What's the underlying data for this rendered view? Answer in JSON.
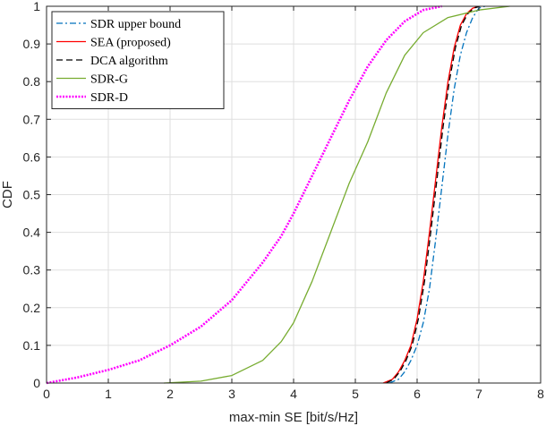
{
  "chart_data": {
    "type": "line",
    "title": "",
    "xlabel": "max-min SE [bit/s/Hz]",
    "ylabel": "CDF",
    "xlim": [
      0,
      8
    ],
    "ylim": [
      0,
      1
    ],
    "grid": true,
    "legend_position": "top-left",
    "xticks": [
      0,
      1,
      2,
      3,
      4,
      5,
      6,
      7,
      8
    ],
    "xtick_labels": [
      "0",
      "1",
      "2",
      "3",
      "4",
      "5",
      "6",
      "7",
      "8"
    ],
    "yticks": [
      0,
      0.1,
      0.2,
      0.3,
      0.4,
      0.5,
      0.6,
      0.7,
      0.8,
      0.9,
      1
    ],
    "ytick_labels": [
      "0",
      "0.1",
      "0.2",
      "0.3",
      "0.4",
      "0.5",
      "0.6",
      "0.7",
      "0.8",
      "0.9",
      "1"
    ],
    "series": [
      {
        "name": "SDR upper bound",
        "color": "#0072BD",
        "line_style": "dashdot",
        "points": [
          [
            5.55,
            0
          ],
          [
            5.7,
            0.01
          ],
          [
            5.8,
            0.03
          ],
          [
            5.9,
            0.06
          ],
          [
            6.0,
            0.1
          ],
          [
            6.1,
            0.16
          ],
          [
            6.2,
            0.25
          ],
          [
            6.3,
            0.38
          ],
          [
            6.4,
            0.52
          ],
          [
            6.5,
            0.66
          ],
          [
            6.6,
            0.78
          ],
          [
            6.7,
            0.87
          ],
          [
            6.8,
            0.93
          ],
          [
            6.9,
            0.97
          ],
          [
            7.0,
            0.995
          ],
          [
            7.1,
            1.0
          ]
        ]
      },
      {
        "name": "SEA (proposed)",
        "color": "#FF0000",
        "line_style": "solid",
        "points": [
          [
            5.45,
            0
          ],
          [
            5.6,
            0.01
          ],
          [
            5.7,
            0.03
          ],
          [
            5.8,
            0.06
          ],
          [
            5.9,
            0.1
          ],
          [
            6.0,
            0.17
          ],
          [
            6.1,
            0.27
          ],
          [
            6.2,
            0.4
          ],
          [
            6.3,
            0.54
          ],
          [
            6.4,
            0.68
          ],
          [
            6.5,
            0.8
          ],
          [
            6.6,
            0.89
          ],
          [
            6.7,
            0.95
          ],
          [
            6.8,
            0.98
          ],
          [
            6.9,
            0.995
          ],
          [
            7.0,
            1.0
          ]
        ]
      },
      {
        "name": "DCA algorithm",
        "color": "#000000",
        "line_style": "dashed",
        "points": [
          [
            5.5,
            0
          ],
          [
            5.62,
            0.01
          ],
          [
            5.72,
            0.03
          ],
          [
            5.82,
            0.06
          ],
          [
            5.92,
            0.1
          ],
          [
            6.02,
            0.17
          ],
          [
            6.12,
            0.27
          ],
          [
            6.22,
            0.4
          ],
          [
            6.32,
            0.54
          ],
          [
            6.42,
            0.68
          ],
          [
            6.52,
            0.8
          ],
          [
            6.62,
            0.89
          ],
          [
            6.72,
            0.95
          ],
          [
            6.82,
            0.98
          ],
          [
            6.92,
            0.995
          ],
          [
            7.02,
            1.0
          ]
        ]
      },
      {
        "name": "SDR-G",
        "color": "#77AC30",
        "line_style": "solid",
        "points": [
          [
            1.9,
            0
          ],
          [
            2.5,
            0.005
          ],
          [
            3.0,
            0.02
          ],
          [
            3.5,
            0.06
          ],
          [
            3.8,
            0.11
          ],
          [
            4.0,
            0.16
          ],
          [
            4.3,
            0.27
          ],
          [
            4.6,
            0.4
          ],
          [
            4.9,
            0.53
          ],
          [
            5.2,
            0.64
          ],
          [
            5.5,
            0.77
          ],
          [
            5.8,
            0.87
          ],
          [
            6.1,
            0.93
          ],
          [
            6.5,
            0.97
          ],
          [
            7.0,
            0.99
          ],
          [
            7.5,
            1.0
          ]
        ]
      },
      {
        "name": "SDR-D",
        "color": "#FF00FF",
        "line_style": "dotted",
        "points": [
          [
            0,
            0
          ],
          [
            0.5,
            0.015
          ],
          [
            1.0,
            0.035
          ],
          [
            1.5,
            0.06
          ],
          [
            2.0,
            0.1
          ],
          [
            2.5,
            0.15
          ],
          [
            3.0,
            0.22
          ],
          [
            3.5,
            0.32
          ],
          [
            3.8,
            0.39
          ],
          [
            4.0,
            0.45
          ],
          [
            4.3,
            0.55
          ],
          [
            4.6,
            0.65
          ],
          [
            4.9,
            0.75
          ],
          [
            5.2,
            0.84
          ],
          [
            5.5,
            0.91
          ],
          [
            5.8,
            0.96
          ],
          [
            6.1,
            0.99
          ],
          [
            6.4,
            1.0
          ]
        ]
      }
    ]
  }
}
